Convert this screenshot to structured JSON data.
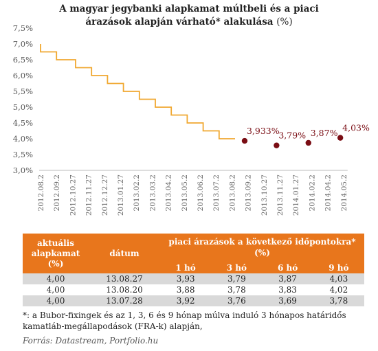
{
  "chart_data": {
    "type": "line",
    "title": "A magyar jegybanki alapkamat múltbeli és a piaci árazások alapján várható* alakulása",
    "title_unit": "(%)",
    "categories": [
      "2012.08.2",
      "2012.09.2",
      "2012.10.27",
      "2012.11.27",
      "2012.12.27",
      "2013.01.27",
      "2013.02.2",
      "2013.03.2",
      "2013.04.2",
      "2013.05.2",
      "2013.06.2",
      "2013.07.2",
      "2013.08.2",
      "2013.09.2",
      "2013.10.27",
      "2013.11.27",
      "2014.01.27",
      "2014.02.2",
      "2014.04.2",
      "2014.05.2"
    ],
    "ylim": [
      3.0,
      7.5
    ],
    "yticks": [
      "3,0%",
      "3,5%",
      "4,0%",
      "4,5%",
      "5,0%",
      "5,5%",
      "6,0%",
      "6,5%",
      "7,0%",
      "7,5%"
    ],
    "series": [
      {
        "role": "historical",
        "color": "#f0a830",
        "points": [
          [
            0,
            7.0
          ],
          [
            0,
            6.75
          ],
          [
            1,
            6.75
          ],
          [
            1,
            6.5
          ],
          [
            2.2,
            6.5
          ],
          [
            2.2,
            6.25
          ],
          [
            3.2,
            6.25
          ],
          [
            3.2,
            6.0
          ],
          [
            4.2,
            6.0
          ],
          [
            4.2,
            5.75
          ],
          [
            5.2,
            5.75
          ],
          [
            5.2,
            5.5
          ],
          [
            6.2,
            5.5
          ],
          [
            6.2,
            5.25
          ],
          [
            7.2,
            5.25
          ],
          [
            7.2,
            5.0
          ],
          [
            8.2,
            5.0
          ],
          [
            8.2,
            4.75
          ],
          [
            9.2,
            4.75
          ],
          [
            9.2,
            4.5
          ],
          [
            10.2,
            4.5
          ],
          [
            10.2,
            4.25
          ],
          [
            11.2,
            4.25
          ],
          [
            11.2,
            4.0
          ],
          [
            12.2,
            4.0
          ]
        ]
      },
      {
        "role": "market-pricing",
        "color": "#7a0d14",
        "points": [
          [
            12.8,
            3.933
          ],
          [
            14.8,
            3.79
          ],
          [
            16.8,
            3.87
          ],
          [
            18.8,
            4.03
          ]
        ],
        "labels": [
          "3,933%",
          "3,79%",
          "3,87%",
          "4,03%"
        ]
      }
    ]
  },
  "table": {
    "header_col1": "aktuális alapkamat (%)",
    "header_col2": "dátum",
    "header_group": "piaci árazások a következő időpontokra* (%)",
    "subheaders": [
      "1 hó",
      "3 hó",
      "6 hó",
      "9 hó"
    ],
    "rows": [
      [
        "4,00",
        "13.08.27",
        "3,93",
        "3,79",
        "3,87",
        "4,03"
      ],
      [
        "4,00",
        "13.08.20",
        "3,88",
        "3,78",
        "3,83",
        "4,02"
      ],
      [
        "4,00",
        "13.07.28",
        "3,92",
        "3,76",
        "3,69",
        "3,78"
      ]
    ]
  },
  "footnote": "*: a Bubor-fixingek és az 1, 3, 6 és 9 hónap múlva induló 3 hónapos határidős kamatláb-megállapodások (FRA-k) alapján,",
  "source": "Forrás: Datastream, Portfolio.hu"
}
